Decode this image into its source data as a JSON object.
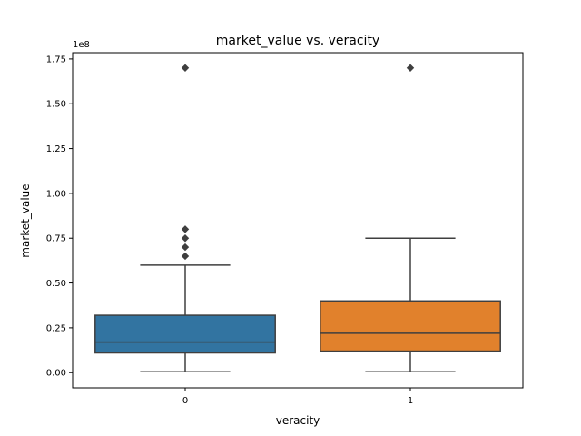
{
  "chart_data": {
    "type": "box",
    "title": "market_value vs. veracity",
    "xlabel": "veracity",
    "ylabel": "market_value",
    "y_offset_text": "1e8",
    "y_scale_factor": 100000000,
    "ylim": [
      -8500000,
      178500000
    ],
    "yticks": [
      0,
      25000000,
      50000000,
      75000000,
      100000000,
      125000000,
      150000000,
      175000000
    ],
    "ytick_labels": [
      "0.00",
      "0.25",
      "0.50",
      "0.75",
      "1.00",
      "1.25",
      "1.50",
      "1.75"
    ],
    "categories": [
      "0",
      "1"
    ],
    "series": [
      {
        "category": "0",
        "color": "#3274a1",
        "whisker_low": 500000,
        "q1": 11000000,
        "median": 17000000,
        "q3": 32000000,
        "whisker_high": 60000000,
        "outliers": [
          65000000,
          70000000,
          75000000,
          80000000,
          170000000
        ]
      },
      {
        "category": "1",
        "color": "#e1812c",
        "whisker_low": 500000,
        "q1": 12000000,
        "median": 22000000,
        "q3": 40000000,
        "whisker_high": 75000000,
        "outliers": [
          170000000
        ]
      }
    ],
    "grid": false,
    "legend": "none"
  }
}
